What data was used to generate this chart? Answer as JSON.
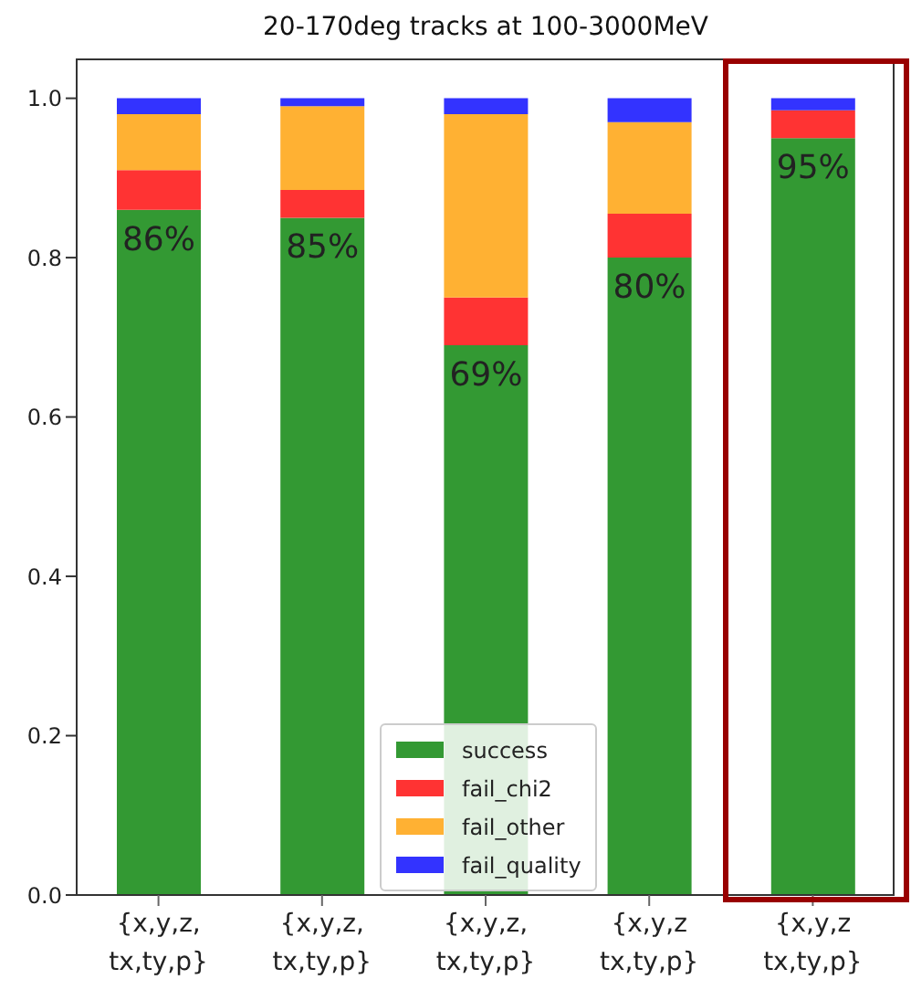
{
  "chart_data": {
    "type": "bar",
    "title": "20-170deg tracks at 100-3000MeV",
    "stacked": true,
    "categories": [
      "{x,y,z, tx,ty,p}",
      "{x,y,z, tx,ty,p}",
      "{x,y,z, tx,ty,p}",
      "{x,y,z tx,ty,p}",
      "{x,y,z tx,ty,p}"
    ],
    "series": [
      {
        "name": "success",
        "color": "#339933",
        "values": [
          0.86,
          0.85,
          0.69,
          0.8,
          0.95
        ],
        "value_labels": [
          "86%",
          "85%",
          "69%",
          "80%",
          "95%"
        ]
      },
      {
        "name": "fail_chi2",
        "color": "#ff3333",
        "values": [
          0.05,
          0.035,
          0.06,
          0.055,
          0.035
        ]
      },
      {
        "name": "fail_other",
        "color": "#ffb133",
        "values": [
          0.07,
          0.105,
          0.23,
          0.115,
          0
        ]
      },
      {
        "name": "fail_quality",
        "color": "#3333ff",
        "values": [
          0.02,
          0.01,
          0.02,
          0.03,
          0.015
        ]
      }
    ],
    "ylim": [
      0,
      1.05
    ],
    "yticks": [
      {
        "value": 0,
        "label": "0.0"
      },
      {
        "value": 0.2,
        "label": "0.2"
      },
      {
        "value": 0.4,
        "label": "0.4"
      },
      {
        "value": 0.6,
        "label": "0.6"
      },
      {
        "value": 0.8,
        "label": "0.8"
      },
      {
        "value": 1,
        "label": "1.0"
      }
    ],
    "legend": "bottom"
  }
}
